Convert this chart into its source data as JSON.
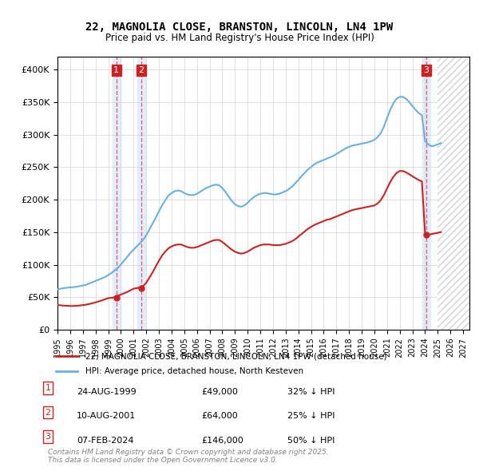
{
  "title": "22, MAGNOLIA CLOSE, BRANSTON, LINCOLN, LN4 1PW",
  "subtitle": "Price paid vs. HM Land Registry's House Price Index (HPI)",
  "legend_line1": "22, MAGNOLIA CLOSE, BRANSTON, LINCOLN, LN4 1PW (detached house)",
  "legend_line2": "HPI: Average price, detached house, North Kesteven",
  "footer": "Contains HM Land Registry data © Crown copyright and database right 2025.\nThis data is licensed under the Open Government Licence v3.0.",
  "transactions": [
    {
      "num": 1,
      "date": "24-AUG-1999",
      "price": 49000,
      "pct": "32%",
      "dir": "↓"
    },
    {
      "num": 2,
      "date": "10-AUG-2001",
      "price": 64000,
      "pct": "25%",
      "dir": "↓"
    },
    {
      "num": 3,
      "date": "07-FEB-2024",
      "price": 146000,
      "pct": "50%",
      "dir": "↓"
    }
  ],
  "transaction_dates_decimal": [
    1999.647,
    2001.606,
    2024.096
  ],
  "transaction_prices": [
    49000,
    64000,
    146000
  ],
  "hpi_color": "#6ab0e0",
  "price_color": "#cc2222",
  "vline_color": "#e06080",
  "highlight_box_color": "#d8e8f8",
  "ylim": [
    0,
    420000
  ],
  "xlim_start": 1995.0,
  "xlim_end": 2027.5,
  "yticks": [
    0,
    50000,
    100000,
    150000,
    200000,
    250000,
    300000,
    350000,
    400000
  ],
  "xticks": [
    1995,
    1996,
    1997,
    1998,
    1999,
    2000,
    2001,
    2002,
    2003,
    2004,
    2005,
    2006,
    2007,
    2008,
    2009,
    2010,
    2011,
    2012,
    2013,
    2014,
    2015,
    2016,
    2017,
    2018,
    2019,
    2020,
    2021,
    2022,
    2023,
    2024,
    2025,
    2026,
    2027
  ],
  "hpi_data_x": [
    1995.0,
    1995.25,
    1995.5,
    1995.75,
    1996.0,
    1996.25,
    1996.5,
    1996.75,
    1997.0,
    1997.25,
    1997.5,
    1997.75,
    1998.0,
    1998.25,
    1998.5,
    1998.75,
    1999.0,
    1999.25,
    1999.5,
    1999.75,
    2000.0,
    2000.25,
    2000.5,
    2000.75,
    2001.0,
    2001.25,
    2001.5,
    2001.75,
    2002.0,
    2002.25,
    2002.5,
    2002.75,
    2003.0,
    2003.25,
    2003.5,
    2003.75,
    2004.0,
    2004.25,
    2004.5,
    2004.75,
    2005.0,
    2005.25,
    2005.5,
    2005.75,
    2006.0,
    2006.25,
    2006.5,
    2006.75,
    2007.0,
    2007.25,
    2007.5,
    2007.75,
    2008.0,
    2008.25,
    2008.5,
    2008.75,
    2009.0,
    2009.25,
    2009.5,
    2009.75,
    2010.0,
    2010.25,
    2010.5,
    2010.75,
    2011.0,
    2011.25,
    2011.5,
    2011.75,
    2012.0,
    2012.25,
    2012.5,
    2012.75,
    2013.0,
    2013.25,
    2013.5,
    2013.75,
    2014.0,
    2014.25,
    2014.5,
    2014.75,
    2015.0,
    2015.25,
    2015.5,
    2015.75,
    2016.0,
    2016.25,
    2016.5,
    2016.75,
    2017.0,
    2017.25,
    2017.5,
    2017.75,
    2018.0,
    2018.25,
    2018.5,
    2018.75,
    2019.0,
    2019.25,
    2019.5,
    2019.75,
    2020.0,
    2020.25,
    2020.5,
    2020.75,
    2021.0,
    2021.25,
    2021.5,
    2021.75,
    2022.0,
    2022.25,
    2022.5,
    2022.75,
    2023.0,
    2023.25,
    2023.5,
    2023.75,
    2024.0,
    2024.25,
    2024.5,
    2024.75,
    2025.0,
    2025.25
  ],
  "hpi_data_y": [
    62000,
    63000,
    64000,
    64500,
    65000,
    65500,
    66000,
    67000,
    68000,
    69000,
    71000,
    73000,
    75000,
    77000,
    79000,
    81000,
    84000,
    87000,
    91000,
    95000,
    100000,
    106000,
    112000,
    118000,
    123000,
    128000,
    133000,
    138000,
    145000,
    154000,
    163000,
    172000,
    182000,
    191000,
    199000,
    206000,
    210000,
    213000,
    214000,
    213000,
    210000,
    208000,
    207000,
    207000,
    209000,
    212000,
    215000,
    218000,
    220000,
    222000,
    223000,
    222000,
    218000,
    212000,
    205000,
    198000,
    193000,
    190000,
    189000,
    191000,
    195000,
    200000,
    204000,
    207000,
    209000,
    210000,
    210000,
    209000,
    208000,
    208000,
    209000,
    211000,
    213000,
    216000,
    220000,
    225000,
    230000,
    236000,
    241000,
    246000,
    250000,
    254000,
    257000,
    259000,
    261000,
    263000,
    265000,
    267000,
    270000,
    273000,
    276000,
    279000,
    281000,
    283000,
    284000,
    285000,
    286000,
    287000,
    288000,
    290000,
    292000,
    296000,
    302000,
    312000,
    325000,
    338000,
    348000,
    355000,
    358000,
    358000,
    355000,
    350000,
    344000,
    338000,
    333000,
    330000,
    290000,
    285000,
    282000,
    283000,
    285000,
    287000
  ],
  "price_data_x": [
    1995.0,
    1995.25,
    1995.5,
    1995.75,
    1996.0,
    1996.25,
    1996.5,
    1996.75,
    1997.0,
    1997.25,
    1997.5,
    1997.75,
    1998.0,
    1998.25,
    1998.5,
    1998.75,
    1999.0,
    1999.25,
    1999.5,
    1999.75,
    2000.0,
    2000.25,
    2000.5,
    2000.75,
    2001.0,
    2001.25,
    2001.5,
    2001.75,
    2002.0,
    2002.25,
    2002.5,
    2002.75,
    2003.0,
    2003.25,
    2003.5,
    2003.75,
    2004.0,
    2004.25,
    2004.5,
    2004.75,
    2005.0,
    2005.25,
    2005.5,
    2005.75,
    2006.0,
    2006.25,
    2006.5,
    2006.75,
    2007.0,
    2007.25,
    2007.5,
    2007.75,
    2008.0,
    2008.25,
    2008.5,
    2008.75,
    2009.0,
    2009.25,
    2009.5,
    2009.75,
    2010.0,
    2010.25,
    2010.5,
    2010.75,
    2011.0,
    2011.25,
    2011.5,
    2011.75,
    2012.0,
    2012.25,
    2012.5,
    2012.75,
    2013.0,
    2013.25,
    2013.5,
    2013.75,
    2014.0,
    2014.25,
    2014.5,
    2014.75,
    2015.0,
    2015.25,
    2015.5,
    2015.75,
    2016.0,
    2016.25,
    2016.5,
    2016.75,
    2017.0,
    2017.25,
    2017.5,
    2017.75,
    2018.0,
    2018.25,
    2018.5,
    2018.75,
    2019.0,
    2019.25,
    2019.5,
    2019.75,
    2020.0,
    2020.25,
    2020.5,
    2020.75,
    2021.0,
    2021.25,
    2021.5,
    2021.75,
    2022.0,
    2022.25,
    2022.5,
    2022.75,
    2023.0,
    2023.25,
    2023.5,
    2023.75,
    2024.0,
    2024.25,
    2024.5,
    2024.75,
    2025.0,
    2025.25
  ],
  "price_data_y": [
    38000,
    37500,
    37000,
    36800,
    36500,
    36500,
    36800,
    37200,
    37800,
    38500,
    39500,
    40700,
    42000,
    43500,
    45000,
    46800,
    48500,
    49000,
    50000,
    52000,
    54000,
    56000,
    58000,
    60500,
    63000,
    64000,
    65000,
    67000,
    72000,
    80000,
    88000,
    97000,
    106000,
    114000,
    120000,
    125000,
    128000,
    130000,
    131000,
    131000,
    129000,
    127000,
    126000,
    126000,
    127000,
    129000,
    131000,
    133000,
    135000,
    137000,
    138000,
    138000,
    135000,
    131000,
    127000,
    123000,
    120000,
    118000,
    117000,
    118000,
    120000,
    123000,
    126000,
    128000,
    130000,
    131000,
    131000,
    131000,
    130000,
    130000,
    130000,
    131000,
    132000,
    134000,
    136000,
    139000,
    143000,
    147000,
    151000,
    155000,
    158000,
    161000,
    163000,
    165000,
    167000,
    169000,
    170000,
    172000,
    174000,
    176000,
    178000,
    180000,
    182000,
    184000,
    185000,
    186000,
    187000,
    188000,
    189000,
    190000,
    191000,
    194000,
    199000,
    207000,
    217000,
    227000,
    235000,
    241000,
    244000,
    244000,
    242000,
    239000,
    236000,
    233000,
    230000,
    228000,
    148000,
    146000,
    147000,
    148000,
    149000,
    150000
  ]
}
